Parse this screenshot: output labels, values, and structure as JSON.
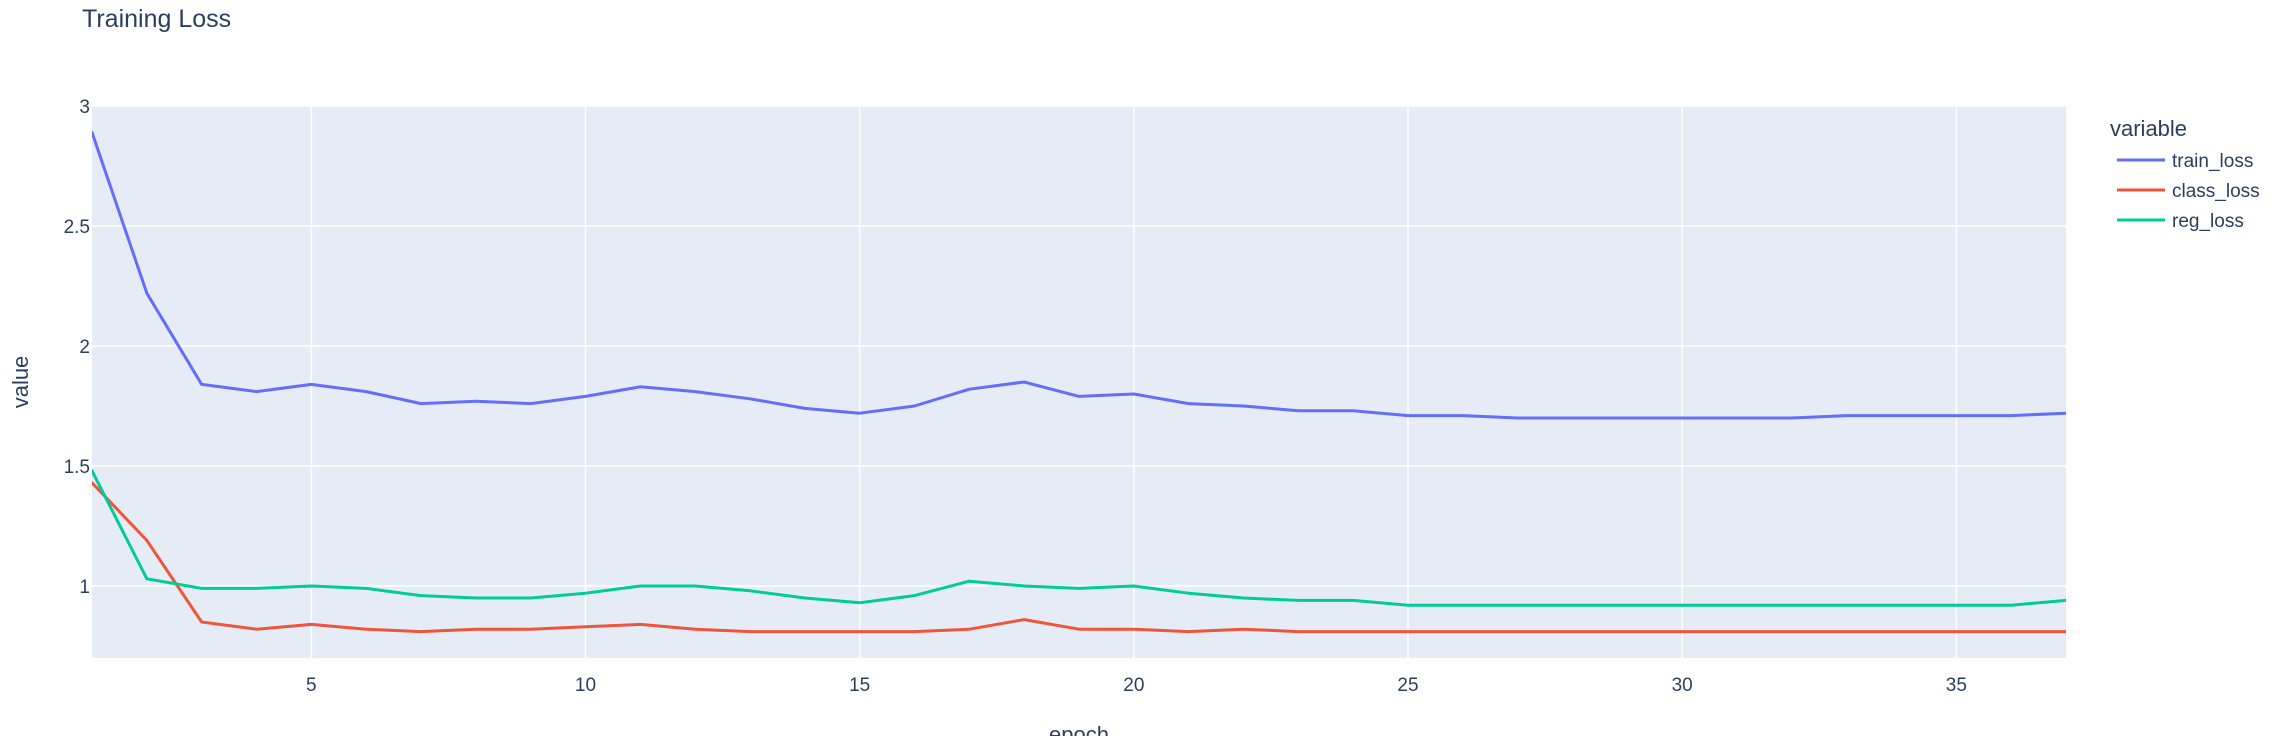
{
  "chart_data": {
    "type": "line",
    "title": "Training Loss",
    "xlabel": "epoch",
    "ylabel": "value",
    "xlim": [
      1,
      37
    ],
    "ylim": [
      0.7,
      3.0
    ],
    "xticks": [
      5,
      10,
      15,
      20,
      25,
      30,
      35
    ],
    "yticks": [
      1,
      1.5,
      2,
      2.5,
      3
    ],
    "ytick_labels": [
      "1",
      "1.5",
      "2",
      "2.5",
      "3"
    ],
    "grid": true,
    "legend_title": "variable",
    "legend_position": "right",
    "x": [
      1,
      2,
      3,
      4,
      5,
      6,
      7,
      8,
      9,
      10,
      11,
      12,
      13,
      14,
      15,
      16,
      17,
      18,
      19,
      20,
      21,
      22,
      23,
      24,
      25,
      26,
      27,
      28,
      29,
      30,
      31,
      32,
      33,
      34,
      35,
      36,
      37
    ],
    "series": [
      {
        "name": "train_loss",
        "color": "#636efa",
        "values": [
          2.89,
          2.22,
          1.84,
          1.81,
          1.84,
          1.81,
          1.76,
          1.77,
          1.76,
          1.79,
          1.83,
          1.81,
          1.78,
          1.74,
          1.72,
          1.75,
          1.82,
          1.85,
          1.79,
          1.8,
          1.76,
          1.75,
          1.73,
          1.73,
          1.71,
          1.71,
          1.7,
          1.7,
          1.7,
          1.7,
          1.7,
          1.7,
          1.71,
          1.71,
          1.71,
          1.71,
          1.72
        ]
      },
      {
        "name": "class_loss",
        "color": "#ef553b",
        "values": [
          1.43,
          1.19,
          0.85,
          0.82,
          0.84,
          0.82,
          0.81,
          0.82,
          0.82,
          0.83,
          0.84,
          0.82,
          0.81,
          0.81,
          0.81,
          0.81,
          0.82,
          0.86,
          0.82,
          0.82,
          0.81,
          0.82,
          0.81,
          0.81,
          0.81,
          0.81,
          0.81,
          0.81,
          0.81,
          0.81,
          0.81,
          0.81,
          0.81,
          0.81,
          0.81,
          0.81,
          0.81
        ]
      },
      {
        "name": "reg_loss",
        "color": "#00cc96",
        "values": [
          1.48,
          1.03,
          0.99,
          0.99,
          1.0,
          0.99,
          0.96,
          0.95,
          0.95,
          0.97,
          1.0,
          1.0,
          0.98,
          0.95,
          0.93,
          0.96,
          1.02,
          1.0,
          0.99,
          1.0,
          0.97,
          0.95,
          0.94,
          0.94,
          0.92,
          0.92,
          0.92,
          0.92,
          0.92,
          0.92,
          0.92,
          0.92,
          0.92,
          0.92,
          0.92,
          0.92,
          0.94
        ]
      }
    ]
  },
  "colors": {
    "plot_bg": "#e5ecf6",
    "grid": "#ffffff",
    "text": "#2a3f5f"
  }
}
